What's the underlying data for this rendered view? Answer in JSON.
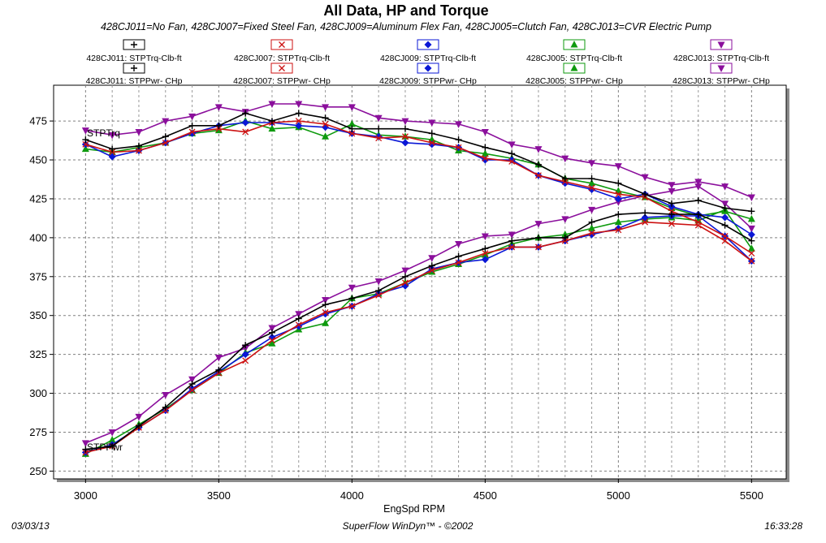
{
  "chart_data": {
    "type": "line",
    "title": "All Data, HP and Torque",
    "subtitle": "428CJ011=No Fan, 428CJ007=Fixed Steel Fan, 428CJ009=Aluminum Flex Fan, 428CJ005=Clutch Fan, 428CJ013=CVR Electric Pump",
    "xlabel": "EngSpd  RPM",
    "xlim": [
      2880,
      5630
    ],
    "ylim": [
      245,
      498
    ],
    "x_ticks": [
      "3000",
      "3500",
      "4000",
      "4500",
      "5000",
      "5500"
    ],
    "y_ticks": [
      "250",
      "275",
      "300",
      "325",
      "350",
      "375",
      "400",
      "425",
      "450",
      "475"
    ],
    "grid": true,
    "legend_position": "top",
    "curve_labels": {
      "torque": "STPTrq",
      "power": "STPPwr"
    },
    "x": [
      3000,
      3100,
      3200,
      3300,
      3400,
      3500,
      3600,
      3700,
      3800,
      3900,
      4000,
      4100,
      4200,
      4300,
      4400,
      4500,
      4600,
      4700,
      4800,
      4900,
      5000,
      5100,
      5200,
      5300,
      5400,
      5500
    ],
    "series": [
      {
        "name": "428CJ011: STPTrq-Clb-ft",
        "color": "#000000",
        "marker": "plus",
        "values": [
          463,
          457,
          459,
          465,
          472,
          472,
          480,
          475,
          480,
          477,
          470,
          470,
          470,
          467,
          463,
          458,
          454,
          447,
          438,
          438,
          435,
          428,
          422,
          424,
          419,
          417
        ]
      },
      {
        "name": "428CJ011: STPPwr- CHp",
        "color": "#000000",
        "marker": "plus",
        "values": [
          264,
          266,
          279,
          291,
          306,
          315,
          331,
          339,
          348,
          357,
          361,
          366,
          375,
          382,
          388,
          393,
          398,
          400,
          400,
          410,
          415,
          416,
          415,
          415,
          408,
          398
        ]
      },
      {
        "name": "428CJ007: STPTrq-Clb-ft",
        "color": "#cc1111",
        "marker": "x",
        "values": [
          460,
          455,
          456,
          461,
          468,
          470,
          468,
          474,
          475,
          473,
          467,
          464,
          465,
          461,
          458,
          451,
          449,
          440,
          436,
          432,
          428,
          426,
          417,
          410,
          401,
          390
        ]
      },
      {
        "name": "428CJ007: STPPwr- CHp",
        "color": "#cc1111",
        "marker": "x",
        "values": [
          262,
          266,
          278,
          289,
          302,
          313,
          321,
          334,
          344,
          352,
          356,
          363,
          371,
          379,
          384,
          390,
          394,
          394,
          398,
          403,
          405,
          410,
          409,
          408,
          398,
          385
        ]
      },
      {
        "name": "428CJ009: STPTrq-Clb-ft",
        "color": "#0a17d6",
        "marker": "diamond",
        "values": [
          460,
          452,
          456,
          461,
          467,
          472,
          474,
          474,
          472,
          471,
          467,
          465,
          461,
          460,
          458,
          450,
          450,
          440,
          435,
          431,
          425,
          428,
          420,
          415,
          413,
          402
        ]
      },
      {
        "name": "428CJ009: STPPwr- CHp",
        "color": "#0a17d6",
        "marker": "diamond",
        "values": [
          262,
          267,
          278,
          289,
          303,
          314,
          325,
          336,
          343,
          351,
          356,
          364,
          369,
          380,
          384,
          386,
          394,
          394,
          398,
          402,
          406,
          413,
          414,
          414,
          401,
          385
        ]
      },
      {
        "name": "428CJ005: STPTrq-Clb-ft",
        "color": "#0e9a0e",
        "marker": "triangle",
        "values": [
          457,
          455,
          458,
          461,
          467,
          469,
          475,
          470,
          471,
          465,
          473,
          466,
          465,
          463,
          456,
          454,
          451,
          447,
          438,
          435,
          430,
          426,
          419,
          414,
          417,
          412
        ]
      },
      {
        "name": "428CJ005: STPPwr- CHp",
        "color": "#0e9a0e",
        "marker": "triangle",
        "values": [
          261,
          270,
          280,
          290,
          302,
          313,
          326,
          332,
          341,
          345,
          361,
          364,
          371,
          378,
          383,
          389,
          396,
          400,
          402,
          406,
          410,
          412,
          413,
          411,
          418,
          393
        ]
      },
      {
        "name": "428CJ013: STPTrq-Clb-ft",
        "color": "#8b0f9c",
        "marker": "triangle-down",
        "values": [
          469,
          466,
          468,
          475,
          478,
          484,
          481,
          486,
          486,
          484,
          484,
          477,
          475,
          474,
          473,
          468,
          460,
          457,
          451,
          448,
          446,
          439,
          434,
          436,
          433,
          426
        ]
      },
      {
        "name": "428CJ013: STPPwr- CHp",
        "color": "#8b0f9c",
        "marker": "triangle-down",
        "values": [
          268,
          275,
          285,
          299,
          309,
          323,
          329,
          342,
          351,
          360,
          368,
          372,
          379,
          387,
          396,
          401,
          402,
          409,
          412,
          418,
          423,
          427,
          430,
          433,
          422,
          406
        ]
      }
    ],
    "legend_layout": [
      [
        "428CJ011: STPTrq-Clb-ft",
        "428CJ007: STPTrq-Clb-ft",
        "428CJ009: STPTrq-Clb-ft",
        "428CJ005: STPTrq-Clb-ft",
        "428CJ013: STPTrq-Clb-ft"
      ],
      [
        "428CJ011: STPPwr- CHp",
        "428CJ007: STPPwr- CHp",
        "428CJ009: STPPwr- CHp",
        "428CJ005: STPPwr- CHp",
        "428CJ013: STPPwr- CHp"
      ]
    ]
  },
  "footer": {
    "date": "03/03/13",
    "software": "SuperFlow WinDyn™ - ©2002",
    "time": "16:33:28"
  }
}
